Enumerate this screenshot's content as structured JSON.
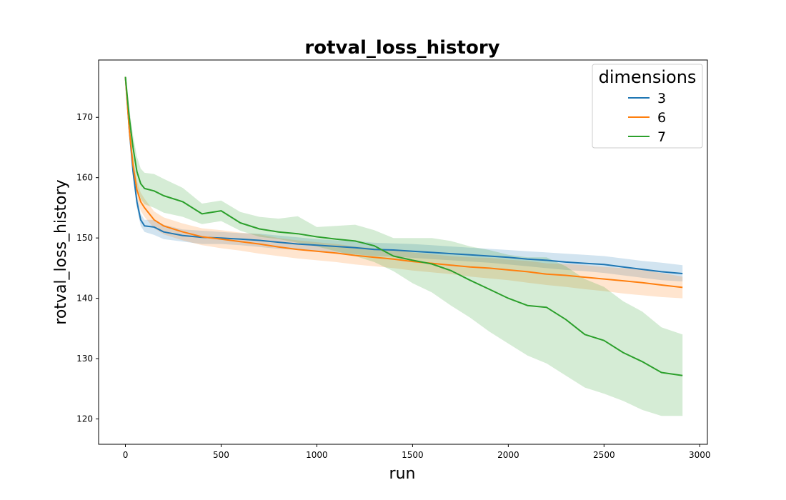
{
  "chart_data": {
    "type": "line",
    "title": "rotval_loss_history",
    "xlabel": "run",
    "ylabel": "rotval_loss_history",
    "xlim": [
      -140,
      3040
    ],
    "ylim": [
      115.8,
      179.5
    ],
    "xticks": [
      0,
      500,
      1000,
      1500,
      2000,
      2500,
      3000
    ],
    "yticks": [
      120,
      130,
      140,
      150,
      160,
      170
    ],
    "grid": false,
    "legend": {
      "title": "dimensions",
      "placement": "top-right"
    },
    "series": [
      {
        "name": "3",
        "color": "#1f77b4",
        "x": [
          0,
          20,
          40,
          60,
          80,
          100,
          150,
          200,
          300,
          400,
          500,
          600,
          700,
          800,
          900,
          1000,
          1100,
          1200,
          1300,
          1400,
          1500,
          1600,
          1700,
          1800,
          1900,
          2000,
          2100,
          2200,
          2300,
          2400,
          2500,
          2600,
          2700,
          2800,
          2910
        ],
        "y": [
          176.7,
          168,
          161,
          156,
          153,
          152,
          151.8,
          151,
          150.4,
          150.1,
          150,
          149.8,
          149.6,
          149.3,
          149,
          148.8,
          148.6,
          148.4,
          148.1,
          148,
          147.8,
          147.6,
          147.4,
          147.2,
          147,
          146.8,
          146.5,
          146.3,
          146,
          145.8,
          145.6,
          145.2,
          144.8,
          144.4,
          144.1
        ],
        "lower": [
          176.5,
          167,
          160,
          155,
          152,
          151,
          150.5,
          149.8,
          149.4,
          149,
          149,
          148.8,
          148.5,
          148.2,
          148,
          147.8,
          147.6,
          147.3,
          147,
          146.9,
          146.7,
          146.5,
          146.3,
          146.1,
          145.9,
          145.6,
          145.3,
          145,
          144.7,
          144.5,
          144.2,
          143.8,
          143.4,
          143,
          142.8
        ],
        "upper": [
          176.9,
          169,
          162,
          157,
          154,
          153,
          153,
          152.2,
          151.4,
          151.2,
          151,
          150.8,
          150.7,
          150.4,
          150.1,
          149.8,
          149.6,
          149.5,
          149.2,
          149.1,
          149,
          148.8,
          148.6,
          148.4,
          148.2,
          148,
          147.8,
          147.6,
          147.4,
          147.2,
          147,
          146.6,
          146.2,
          145.9,
          145.5
        ]
      },
      {
        "name": "6",
        "color": "#ff7f0e",
        "x": [
          0,
          20,
          40,
          60,
          80,
          100,
          150,
          200,
          300,
          400,
          500,
          600,
          700,
          800,
          900,
          1000,
          1100,
          1200,
          1300,
          1400,
          1500,
          1600,
          1700,
          1800,
          1900,
          2000,
          2100,
          2200,
          2300,
          2400,
          2500,
          2600,
          2700,
          2800,
          2910
        ],
        "y": [
          176.7,
          168,
          162,
          158,
          156,
          155,
          153,
          152,
          151,
          150.2,
          149.8,
          149.4,
          149,
          148.5,
          148.1,
          147.8,
          147.5,
          147.1,
          146.8,
          146.5,
          146.1,
          145.8,
          145.5,
          145.2,
          145,
          144.7,
          144.4,
          144,
          143.8,
          143.5,
          143.2,
          142.9,
          142.6,
          142.2,
          141.8
        ],
        "lower": [
          176.5,
          167,
          160.5,
          156.5,
          154.5,
          153.5,
          151.6,
          150.6,
          149.6,
          148.8,
          148.3,
          147.9,
          147.4,
          147,
          146.6,
          146.3,
          146,
          145.6,
          145.3,
          145,
          144.6,
          144.3,
          144,
          143.6,
          143.3,
          143,
          142.6,
          142.2,
          141.9,
          141.5,
          141.2,
          140.8,
          140.5,
          140.2,
          140
        ],
        "upper": [
          176.9,
          169,
          163.5,
          159.5,
          157.5,
          156.5,
          154.4,
          153.4,
          152.4,
          151.6,
          151.3,
          150.9,
          150.6,
          150,
          149.6,
          149.3,
          149,
          148.6,
          148.3,
          148,
          147.6,
          147.3,
          147,
          146.8,
          146.7,
          146.4,
          146.2,
          145.8,
          145.7,
          145.5,
          145.2,
          145,
          144.7,
          144.2,
          143.6
        ]
      },
      {
        "name": "7",
        "color": "#2ca02c",
        "x": [
          0,
          20,
          40,
          60,
          80,
          100,
          150,
          200,
          300,
          400,
          500,
          600,
          700,
          800,
          900,
          1000,
          1100,
          1200,
          1300,
          1400,
          1500,
          1600,
          1700,
          1800,
          1900,
          2000,
          2100,
          2200,
          2300,
          2400,
          2500,
          2600,
          2700,
          2800,
          2910
        ],
        "y": [
          176.7,
          170,
          165,
          161,
          159,
          158.2,
          157.8,
          157,
          156,
          154,
          154.5,
          152.5,
          151.5,
          151,
          150.7,
          150.2,
          149.8,
          149.5,
          148.7,
          147,
          146.3,
          145.7,
          144.6,
          143,
          141.5,
          140,
          138.8,
          138.5,
          136.5,
          134,
          133,
          131,
          129.5,
          127.7,
          127.2
        ],
        "lower": [
          176.5,
          168.5,
          163,
          158.5,
          156.5,
          155.6,
          155,
          154.2,
          153.5,
          152.3,
          152.8,
          151.2,
          150.2,
          149.8,
          149.2,
          148.6,
          147.8,
          147,
          146,
          144.5,
          142.5,
          141,
          138.8,
          136.8,
          134.5,
          132.5,
          130.5,
          129.2,
          127.2,
          125.2,
          124.2,
          123,
          121.5,
          120.5,
          120.5
        ],
        "upper": [
          176.9,
          171.5,
          167,
          163.5,
          161.5,
          160.8,
          160.6,
          159.8,
          158.3,
          155.7,
          156.2,
          154.3,
          153.5,
          153.2,
          153.6,
          151.8,
          152,
          152.2,
          151.3,
          150,
          150,
          150,
          149.5,
          148.6,
          148,
          147.2,
          146.8,
          146.8,
          145.3,
          143.2,
          141.9,
          139.5,
          137.8,
          135.2,
          134
        ]
      }
    ]
  }
}
